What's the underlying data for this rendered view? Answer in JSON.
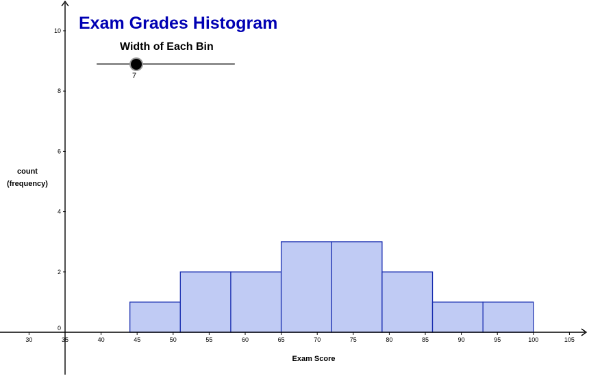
{
  "title": "Exam Grades Histogram",
  "slider": {
    "label": "Width of Each Bin",
    "value": "7"
  },
  "axes": {
    "ylabel_line1": "count",
    "ylabel_line2": "(frequency)",
    "xlabel": "Exam Score"
  },
  "colors": {
    "title": "#0000b3",
    "bar_fill": "#c0cbf4",
    "bar_stroke": "#1a2fb0",
    "axis": "#000000"
  },
  "chart_data": {
    "type": "bar",
    "title": "Exam Grades Histogram",
    "xlabel": "Exam Score",
    "ylabel": "count (frequency)",
    "bin_width": 7,
    "bins": [
      {
        "start": 44,
        "end": 51,
        "count": 1
      },
      {
        "start": 51,
        "end": 58,
        "count": 2
      },
      {
        "start": 58,
        "end": 65,
        "count": 2
      },
      {
        "start": 65,
        "end": 72,
        "count": 3
      },
      {
        "start": 72,
        "end": 79,
        "count": 3
      },
      {
        "start": 79,
        "end": 86,
        "count": 2
      },
      {
        "start": 86,
        "end": 93,
        "count": 1
      },
      {
        "start": 93,
        "end": 100,
        "count": 1
      }
    ],
    "x_ticks": [
      "30",
      "35",
      "40",
      "45",
      "50",
      "55",
      "60",
      "65",
      "70",
      "75",
      "80",
      "85",
      "90",
      "95",
      "100",
      "105"
    ],
    "y_ticks": [
      "0",
      "2",
      "4",
      "6",
      "8",
      "10"
    ],
    "xlim": [
      26,
      107
    ],
    "ylim": [
      0,
      11
    ],
    "grid": false
  }
}
